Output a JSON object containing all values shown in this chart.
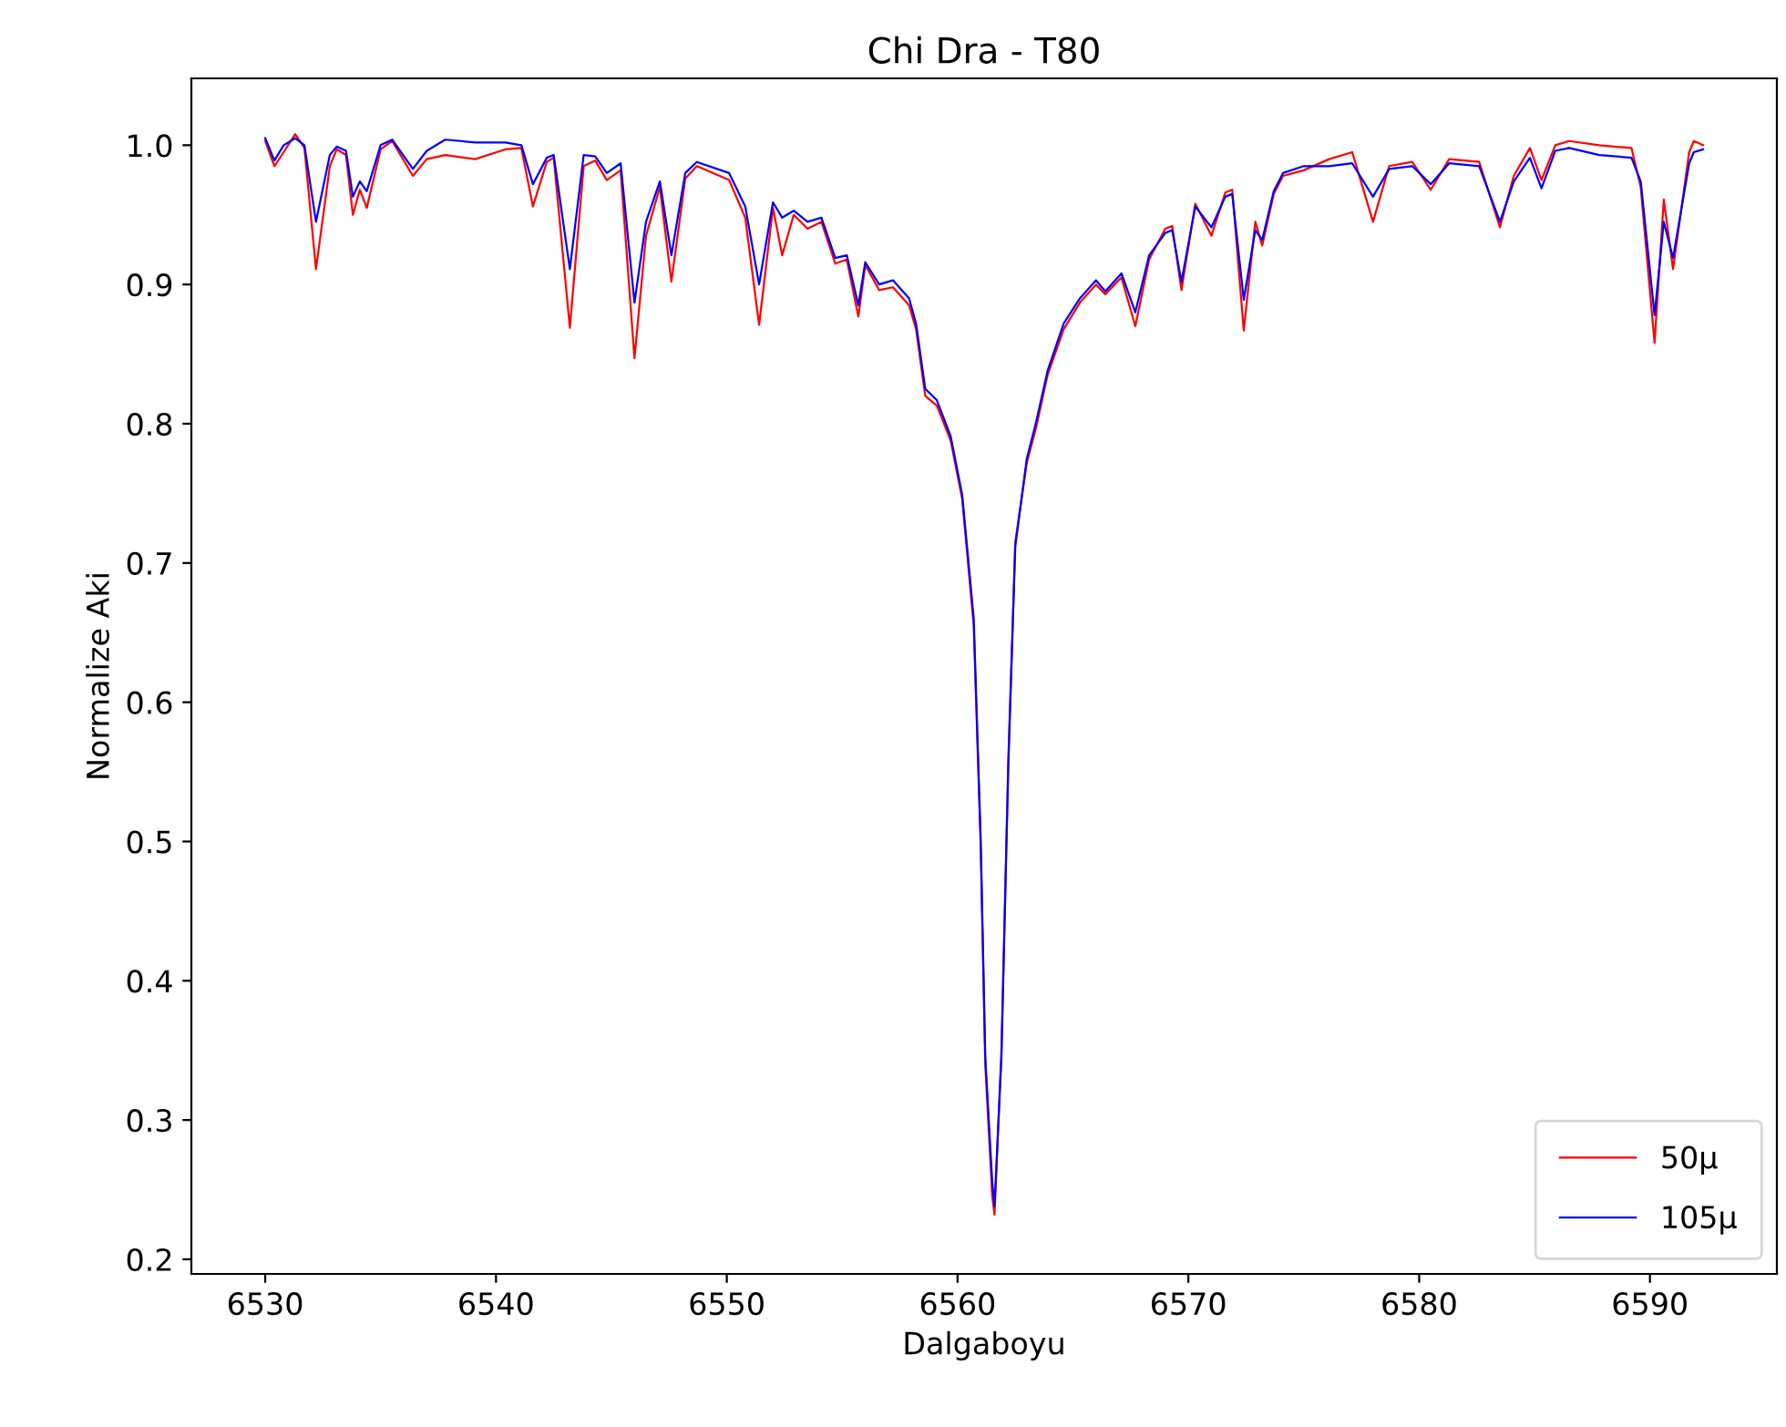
{
  "chart_data": {
    "type": "line",
    "title": "Chi Dra - T80",
    "xlabel": "Dalgaboyu",
    "ylabel": "Normalize Aki",
    "x": [
      6530.0,
      6530.4,
      6530.8,
      6531.3,
      6531.7,
      6532.2,
      6532.8,
      6533.1,
      6533.5,
      6533.8,
      6534.1,
      6534.4,
      6535.0,
      6535.5,
      6536.4,
      6537.0,
      6537.8,
      6539.1,
      6540.4,
      6541.1,
      6541.6,
      6542.2,
      6542.5,
      6543.2,
      6543.8,
      6544.3,
      6544.8,
      6545.4,
      6546.0,
      6546.5,
      6547.1,
      6547.6,
      6548.2,
      6548.7,
      6550.1,
      6550.8,
      6551.4,
      6552.0,
      6552.4,
      6552.9,
      6553.5,
      6554.1,
      6554.7,
      6555.2,
      6555.7,
      6556.0,
      6556.6,
      6557.2,
      6557.9,
      6558.2,
      6558.6,
      6559.1,
      6559.7,
      6560.2,
      6560.7,
      6561.0,
      6561.2,
      6561.5,
      6561.6,
      6561.9,
      6562.2,
      6562.5,
      6563.0,
      6563.4,
      6563.9,
      6564.6,
      6565.3,
      6566.0,
      6566.4,
      6567.1,
      6567.7,
      6568.3,
      6569.0,
      6569.3,
      6569.7,
      6570.3,
      6571.0,
      6571.6,
      6571.9,
      6572.4,
      6572.9,
      6573.2,
      6573.7,
      6574.1,
      6575.0,
      6576.1,
      6577.1,
      6578.0,
      6578.7,
      6579.7,
      6580.5,
      6581.3,
      6582.6,
      6583.5,
      6584.1,
      6584.8,
      6585.3,
      6585.9,
      6586.5,
      6587.8,
      6589.2,
      6589.6,
      6590.2,
      6590.6,
      6591.0,
      6591.7,
      6591.9,
      6592.3
    ],
    "series": [
      {
        "name": "50μ",
        "color": "#ff0000",
        "values": [
          1.003,
          0.985,
          0.995,
          1.008,
          0.998,
          0.911,
          0.985,
          0.997,
          0.993,
          0.95,
          0.968,
          0.955,
          0.997,
          1.003,
          0.978,
          0.99,
          0.993,
          0.99,
          0.997,
          0.998,
          0.956,
          0.988,
          0.991,
          0.869,
          0.985,
          0.989,
          0.975,
          0.982,
          0.847,
          0.935,
          0.97,
          0.902,
          0.976,
          0.985,
          0.975,
          0.948,
          0.871,
          0.955,
          0.921,
          0.95,
          0.94,
          0.945,
          0.915,
          0.918,
          0.877,
          0.914,
          0.896,
          0.898,
          0.885,
          0.868,
          0.82,
          0.813,
          0.788,
          0.746,
          0.655,
          0.498,
          0.34,
          0.246,
          0.232,
          0.35,
          0.56,
          0.715,
          0.772,
          0.797,
          0.835,
          0.868,
          0.887,
          0.9,
          0.893,
          0.905,
          0.87,
          0.918,
          0.94,
          0.942,
          0.896,
          0.958,
          0.935,
          0.966,
          0.968,
          0.867,
          0.945,
          0.928,
          0.965,
          0.978,
          0.982,
          0.99,
          0.995,
          0.945,
          0.985,
          0.988,
          0.968,
          0.99,
          0.988,
          0.941,
          0.978,
          0.998,
          0.975,
          1.0,
          1.003,
          1.0,
          0.998,
          0.97,
          0.858,
          0.961,
          0.911,
          0.995,
          1.003,
          1.0
        ]
      },
      {
        "name": "105μ",
        "color": "#0000ff",
        "values": [
          1.005,
          0.989,
          1.0,
          1.005,
          1.0,
          0.945,
          0.993,
          0.999,
          0.996,
          0.963,
          0.974,
          0.967,
          1.0,
          1.004,
          0.983,
          0.996,
          1.004,
          1.002,
          1.002,
          1.0,
          0.972,
          0.991,
          0.993,
          0.911,
          0.993,
          0.992,
          0.98,
          0.987,
          0.887,
          0.945,
          0.974,
          0.921,
          0.98,
          0.988,
          0.98,
          0.956,
          0.9,
          0.959,
          0.948,
          0.953,
          0.945,
          0.948,
          0.919,
          0.921,
          0.885,
          0.916,
          0.9,
          0.903,
          0.89,
          0.872,
          0.825,
          0.817,
          0.791,
          0.749,
          0.66,
          0.502,
          0.345,
          0.256,
          0.238,
          0.345,
          0.555,
          0.712,
          0.775,
          0.801,
          0.838,
          0.872,
          0.89,
          0.903,
          0.895,
          0.908,
          0.88,
          0.921,
          0.937,
          0.939,
          0.902,
          0.956,
          0.941,
          0.963,
          0.965,
          0.889,
          0.939,
          0.932,
          0.967,
          0.98,
          0.985,
          0.985,
          0.987,
          0.963,
          0.983,
          0.985,
          0.972,
          0.987,
          0.985,
          0.945,
          0.974,
          0.991,
          0.969,
          0.996,
          0.998,
          0.993,
          0.991,
          0.974,
          0.878,
          0.945,
          0.919,
          0.987,
          0.995,
          0.997
        ]
      }
    ],
    "xlim": [
      6526.8,
      6595.5
    ],
    "ylim": [
      0.1895,
      1.048
    ],
    "xticks": [
      6530,
      6540,
      6550,
      6560,
      6570,
      6580,
      6590
    ],
    "yticks": [
      0.2,
      0.3,
      0.4,
      0.5,
      0.6,
      0.7,
      0.8,
      0.9,
      {
        "value": 1,
        "label": "1.0"
      }
    ],
    "legend": "lower right",
    "grid": false,
    "marker": "none",
    "line_style": "solid"
  }
}
